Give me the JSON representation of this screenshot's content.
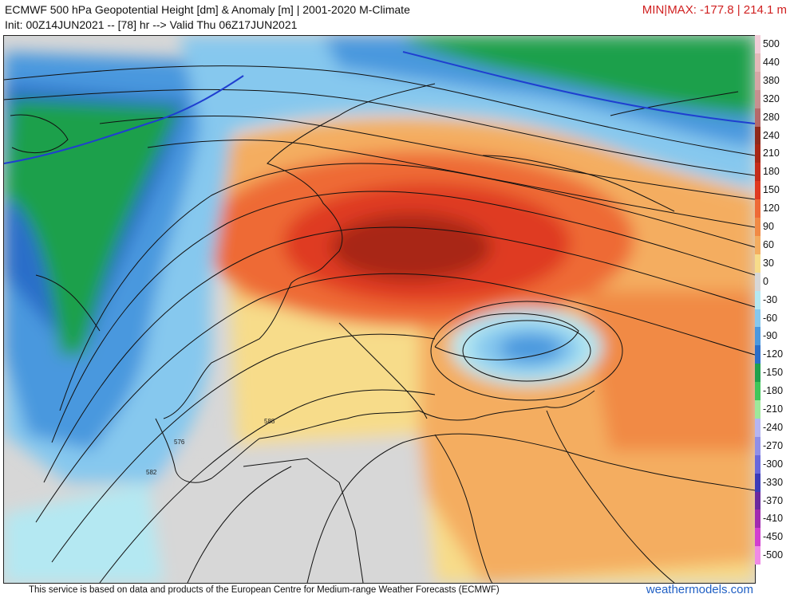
{
  "header": {
    "title": "ECMWF 500 hPa Geopotential Height [dm] & Anomaly [m] | 2001-2020 M-Climate",
    "subtitle": "Init: 00Z14JUN2021 -- [78] hr --> Valid Thu 06Z17JUN2021",
    "minmax": "MIN|MAX: -177.8 | 214.1 m"
  },
  "legend": [
    {
      "label": "500",
      "color": "#f2cdd8"
    },
    {
      "label": "440",
      "color": "#e3b9b9"
    },
    {
      "label": "380",
      "color": "#d6a6a6"
    },
    {
      "label": "320",
      "color": "#c79090"
    },
    {
      "label": "280",
      "color": "#b56a6a"
    },
    {
      "label": "240",
      "color": "#8f2a1c"
    },
    {
      "label": "210",
      "color": "#a82715"
    },
    {
      "label": "180",
      "color": "#c42c1a"
    },
    {
      "label": "150",
      "color": "#df3a20"
    },
    {
      "label": "120",
      "color": "#ee6a36"
    },
    {
      "label": "90",
      "color": "#f18a45"
    },
    {
      "label": "60",
      "color": "#f4ad60"
    },
    {
      "label": "30",
      "color": "#f7dc8a"
    },
    {
      "label": "0",
      "color": "#d7d7d7"
    },
    {
      "label": "-30",
      "color": "#b4e8f2"
    },
    {
      "label": "-60",
      "color": "#86c8ee"
    },
    {
      "label": "-90",
      "color": "#4a98de"
    },
    {
      "label": "-120",
      "color": "#2a6ec9"
    },
    {
      "label": "-150",
      "color": "#1fa04c"
    },
    {
      "label": "-180",
      "color": "#3fc65a"
    },
    {
      "label": "-210",
      "color": "#9ee89b"
    },
    {
      "label": "-240",
      "color": "#b5b5f2"
    },
    {
      "label": "-270",
      "color": "#8f8fe8"
    },
    {
      "label": "-300",
      "color": "#6868dc"
    },
    {
      "label": "-330",
      "color": "#3b3bb8"
    },
    {
      "label": "-370",
      "color": "#6a2a9e"
    },
    {
      "label": "-410",
      "color": "#a12cb0"
    },
    {
      "label": "-450",
      "color": "#d23fd0"
    },
    {
      "label": "-500",
      "color": "#f08ae6"
    }
  ],
  "map": {
    "contour_labels": [
      "576",
      "582",
      "588"
    ],
    "colors": {
      "water": "#d7d7d7",
      "coast": "#111111",
      "contour": "#111111",
      "blue_contour": "#1f3fd0"
    }
  },
  "footer": {
    "credit": "This service is based on data and products of the European Centre for Medium-range Weather Forecasts (ECMWF)",
    "brand": "weathermodels.com"
  }
}
